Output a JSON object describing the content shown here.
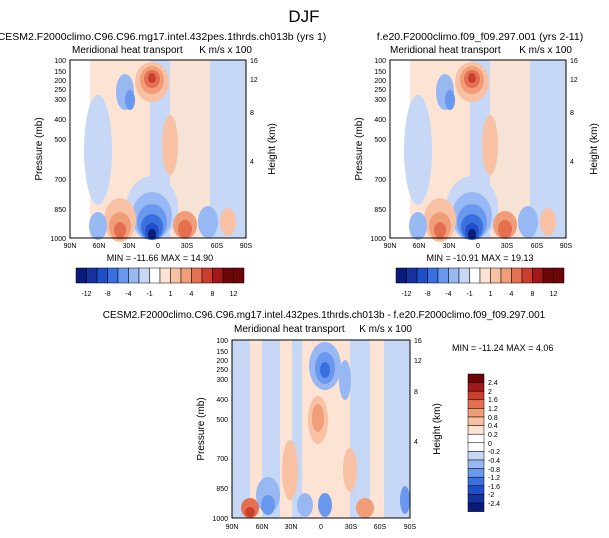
{
  "figure_title": "DJF",
  "colors": {
    "blues": [
      "#0b1a7a",
      "#14339e",
      "#1f4fc8",
      "#3a6fe0",
      "#6a98ee",
      "#97b8f2",
      "#c6d8f6"
    ],
    "neutral": "#ffffff",
    "reds": [
      "#fce3d3",
      "#f8c1a4",
      "#f19d78",
      "#e46f51",
      "#cc3f2d",
      "#a3171b",
      "#6e0609"
    ]
  },
  "chart_data": [
    {
      "type": "heatmap",
      "title": "CESM2.F2000climo.C96.C96.mg17.intel.432pes.1thrds.ch013b (yrs 1)",
      "subtitle_left": "Meridional heat transport",
      "subtitle_right": "K m/s x 100",
      "xlabel": "",
      "ylabel": "Pressure (mb)",
      "y2label": "Height (km)",
      "xticks": [
        "90N",
        "60N",
        "30N",
        "0",
        "30S",
        "60S",
        "90S"
      ],
      "yticks": [
        "100",
        "150",
        "200",
        "250",
        "300",
        "400",
        "500",
        "700",
        "850",
        "1000"
      ],
      "y2ticks": [
        "16",
        "12",
        "8",
        "4"
      ],
      "stats": "MIN = -11.66  MAX = 14.90",
      "levels": [
        -12,
        -8,
        -4,
        -1,
        1,
        4,
        8,
        12
      ],
      "min": -11.66,
      "max": 14.9
    },
    {
      "type": "heatmap",
      "title": "f.e20.F2000climo.f09_f09.297.001 (yrs 2-11)",
      "subtitle_left": "Meridional heat transport",
      "subtitle_right": "K m/s x 100",
      "xlabel": "",
      "ylabel": "Pressure (mb)",
      "y2label": "Height (km)",
      "xticks": [
        "90N",
        "60N",
        "30N",
        "0",
        "30S",
        "60S",
        "90S"
      ],
      "yticks": [
        "100",
        "150",
        "200",
        "250",
        "300",
        "400",
        "500",
        "700",
        "850",
        "1000"
      ],
      "y2ticks": [
        "16",
        "12",
        "8",
        "4"
      ],
      "stats": "MIN = -10.91  MAX = 19.13",
      "levels": [
        -12,
        -8,
        -4,
        -1,
        1,
        4,
        8,
        12
      ],
      "min": -10.91,
      "max": 19.13
    },
    {
      "type": "heatmap",
      "title": "CESM2.F2000climo.C96.C96.mg17.intel.432pes.1thrds.ch013b - f.e20.F2000climo.f09_f09.297.001",
      "subtitle_left": "Meridional heat transport",
      "subtitle_right": "K m/s x 100",
      "xlabel": "",
      "ylabel": "Pressure (mb)",
      "y2label": "Height (km)",
      "xticks": [
        "90N",
        "60N",
        "30N",
        "0",
        "30S",
        "60S",
        "90S"
      ],
      "yticks": [
        "100",
        "150",
        "200",
        "250",
        "300",
        "400",
        "500",
        "700",
        "850",
        "1000"
      ],
      "y2ticks": [
        "16",
        "12",
        "8",
        "4"
      ],
      "stats": "MIN = -11.24  MAX =   4.06",
      "levels": [
        -2.4,
        -2,
        -1.6,
        -1.2,
        -0.8,
        -0.4,
        -0.2,
        0,
        0.2,
        0.4,
        0.8,
        1.2,
        1.6,
        2,
        2.4
      ],
      "min": -11.24,
      "max": 4.06
    }
  ]
}
